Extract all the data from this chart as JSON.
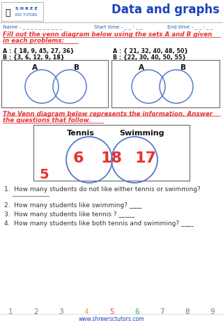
{
  "title": "Data and graphs",
  "name_label": "Name - _ _ _ _ _ _ _ _ _ _",
  "start_time_label": "Start time - _ _ : _ _",
  "end_time_label": "End time - _ _ : _ _",
  "instruction1_line1": "Fill out the venn diagram below using the sets A and B given",
  "instruction1_line2": "in each problems:",
  "set1_A": "A : { 18, 9, 45, 27, 36}",
  "set1_B": "B : {3, 6, 12, 9, 18}",
  "set2_A": "A : { 21, 32, 40, 48, 50}",
  "set2_B": "B : {22, 30, 40, 50, 55}",
  "instruction2_line1": "The Venn diagram below represents the information. Answer",
  "instruction2_line2": "the questions that follow.",
  "venn_tennis_label": "Tennis",
  "venn_swimming_label": "Swimming",
  "venn_tennis_only": "6",
  "venn_both": "18",
  "venn_swimming_only": "17",
  "venn_outside": "5",
  "q1": "1.  How many students do not like either tennis or swimming?",
  "q2": "2.  How many students like swimming? ____",
  "q3": "3.  How many students like tennis ? _____",
  "q4": "4.  How many students like both tennis and swimming? ____",
  "footer_numbers": [
    "1",
    "2",
    "3",
    "4",
    "5",
    "6",
    "7",
    "8",
    "9"
  ],
  "footer_colors": [
    "#4db346",
    "#777777",
    "#777777",
    "#f5a623",
    "#e74c3c",
    "#27ae60",
    "#777777",
    "#777777",
    "#777777"
  ],
  "footer_url": "www.shreersctutors.com",
  "bg_color": "#ffffff",
  "title_color": "#1a44bb",
  "red_color": "#e53333",
  "circle_color": "#5577cc",
  "venn_number_color": "#e53333",
  "header_line_color": "#bbbbbb",
  "shree_color": "#1a44bb"
}
